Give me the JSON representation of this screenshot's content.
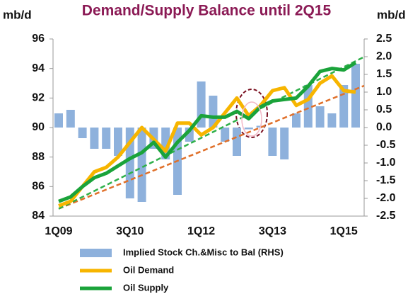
{
  "chart_data": {
    "type": "bar-line",
    "title": "Demand/Supply Balance until 2Q15",
    "ylabel": "mb/d",
    "y2label": "mb/d",
    "categories": [
      "1Q09",
      null,
      null,
      null,
      null,
      null,
      "3Q10",
      null,
      null,
      null,
      null,
      null,
      "1Q12",
      null,
      null,
      null,
      null,
      null,
      "3Q13",
      null,
      null,
      null,
      null,
      null,
      "1Q15",
      null
    ],
    "ylim": [
      84,
      96
    ],
    "yticks": [
      84,
      86,
      88,
      90,
      92,
      94,
      96
    ],
    "y2lim": [
      -2.5,
      2.5
    ],
    "y2ticks": [
      -2.5,
      {
        "value": -2,
        "label": "-2.0"
      },
      -1.5,
      {
        "value": -1,
        "label": "-1.0"
      },
      -0.5,
      {
        "value": 0,
        "label": "0.0"
      },
      0.5,
      {
        "value": 1,
        "label": "1.0"
      },
      1.5,
      {
        "value": 2,
        "label": "2.0"
      },
      2.5
    ],
    "series": [
      {
        "name": "Implied Stock Ch.&Misc to Bal (RHS)",
        "type": "bar",
        "axis": "y2",
        "color": "#8eb1dc",
        "values": [
          0.4,
          0.5,
          -0.3,
          -0.6,
          -0.6,
          -0.8,
          -2.0,
          -2.1,
          -0.6,
          -0.9,
          -1.9,
          -0.4,
          1.3,
          0.9,
          -0.4,
          -0.8,
          -0.05,
          0.05,
          -0.8,
          -0.9,
          0.4,
          1.2,
          0.6,
          0.4,
          1.2,
          1.8
        ]
      },
      {
        "name": "Oil Demand",
        "type": "line",
        "color": "#f7b500",
        "values": [
          84.7,
          85.0,
          86.0,
          87.0,
          87.3,
          88.0,
          89.0,
          90.0,
          89.2,
          88.4,
          90.3,
          90.3,
          89.5,
          90.0,
          91.0,
          92.0,
          90.8,
          91.5,
          92.5,
          92.7,
          91.5,
          91.9,
          93.0,
          93.5,
          92.5,
          92.4
        ]
      },
      {
        "name": "Oil Supply",
        "type": "line",
        "color": "#1aa33a",
        "values": [
          85.0,
          85.3,
          86.0,
          86.6,
          86.9,
          87.4,
          87.9,
          88.3,
          89.0,
          88.0,
          89.0,
          89.8,
          90.8,
          90.7,
          90.7,
          91.1,
          90.6,
          91.4,
          91.8,
          91.9,
          92.0,
          92.8,
          93.8,
          94.0,
          93.9,
          94.4
        ]
      }
    ],
    "trend_lines": [
      {
        "color": "#e0702a",
        "values": [
          84.5,
          92.6
        ]
      },
      {
        "color": "#2fb04a",
        "values": [
          84.5,
          94.5
        ]
      }
    ]
  }
}
